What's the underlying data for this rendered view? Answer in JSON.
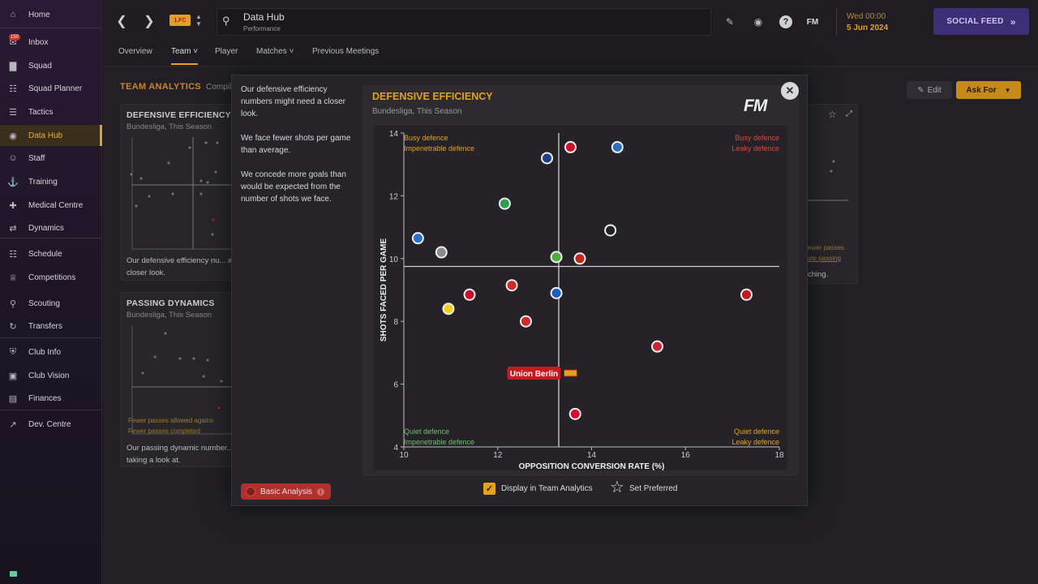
{
  "sidebar": {
    "items": [
      {
        "label": "Home",
        "icon": "home-icon"
      },
      {
        "label": "Inbox",
        "icon": "inbox-icon",
        "badge": "150"
      },
      {
        "label": "Squad",
        "icon": "shirt-icon"
      },
      {
        "label": "Squad Planner",
        "icon": "planner-icon"
      },
      {
        "label": "Tactics",
        "icon": "tactics-icon"
      },
      {
        "label": "Data Hub",
        "icon": "data-hub-icon",
        "active": true
      },
      {
        "label": "Staff",
        "icon": "staff-icon"
      },
      {
        "label": "Training",
        "icon": "training-icon"
      },
      {
        "label": "Medical Centre",
        "icon": "medical-icon"
      },
      {
        "label": "Dynamics",
        "icon": "dynamics-icon"
      },
      {
        "label": "Schedule",
        "icon": "calendar-icon"
      },
      {
        "label": "Competitions",
        "icon": "trophy-icon"
      },
      {
        "label": "Scouting",
        "icon": "scouting-icon"
      },
      {
        "label": "Transfers",
        "icon": "transfers-icon"
      },
      {
        "label": "Club Info",
        "icon": "shield-icon"
      },
      {
        "label": "Club Vision",
        "icon": "briefcase-icon"
      },
      {
        "label": "Finances",
        "icon": "finances-icon"
      },
      {
        "label": "Dev. Centre",
        "icon": "dev-centre-icon"
      }
    ]
  },
  "topbar": {
    "club_badge_text": "1.FC",
    "title": "Data Hub",
    "subtitle": "Performance",
    "brand": "FM",
    "date_line1": "Wed 00:00",
    "date_line2": "5 Jun 2024",
    "social_feed": "SOCIAL FEED"
  },
  "tabs": [
    {
      "label": "Overview"
    },
    {
      "label": "Team",
      "active": true,
      "dropdown": true
    },
    {
      "label": "Player"
    },
    {
      "label": "Matches",
      "dropdown": true
    },
    {
      "label": "Previous Meetings"
    }
  ],
  "main": {
    "section_title": "TEAM ANALYTICS",
    "section_sub": "Compil",
    "edit": "Edit",
    "ask_for": "Ask For",
    "card1": {
      "title": "DEFENSIVE EFFICIENCY",
      "sub": "Bundesliga, This Season",
      "desc": "Our defensive efficiency nu... a closer look."
    },
    "card2": {
      "title": "PASSING DYNAMICS",
      "sub": "Bundesliga, This Season",
      "desc": "Our passing dynamic number... taking a look at.",
      "l1": "Fewer passes allowed agains",
      "l2": "Fewer passes completed"
    },
    "card3": {
      "l1": "ewer passes",
      "l2": "ate passing",
      "desc": "ching."
    }
  },
  "modal": {
    "desc1": "Our defensive efficiency numbers might need a closer look.",
    "desc2": "We face fewer shots per game than average.",
    "desc3": "We concede more goals than would be expected from the number of shots we face.",
    "basic_analysis": "Basic Analysis",
    "display_label": "Display in Team Analytics",
    "preferred_label": "Set Preferred",
    "chart_title": "DEFENSIVE EFFICIENCY",
    "chart_sub": "Bundesliga, This Season",
    "fm_logo": "FM"
  },
  "chart_data": {
    "type": "scatter",
    "title": "DEFENSIVE EFFICIENCY",
    "subtitle": "Bundesliga, This Season",
    "xlabel": "OPPOSITION CONVERSION RATE (%)",
    "ylabel": "SHOTS FACED PER GAME",
    "xlim": [
      10,
      18
    ],
    "ylim": [
      4,
      14
    ],
    "xticks": [
      10,
      12,
      14,
      16,
      18
    ],
    "yticks": [
      4,
      6,
      8,
      10,
      12,
      14
    ],
    "avg_x": 13.3,
    "avg_y": 9.75,
    "quadrant_labels": {
      "top_left": [
        "Busy defence",
        "Impenetrable defence"
      ],
      "top_right": [
        "Busy defence",
        "Leaky defence"
      ],
      "bottom_left": [
        "Quiet defence",
        "Impenetrable defence"
      ],
      "bottom_right": [
        "Quiet defence",
        "Leaky defence"
      ]
    },
    "colors": {
      "label_top_left": "#e2a21f",
      "label_top_right": "#e0453a",
      "label_bottom_left": "#6cc06a",
      "label_bottom_right": "#e2a21f",
      "highlight": "#c8191f"
    },
    "highlight_label": "Union Berlin",
    "points": [
      {
        "x": 13.05,
        "y": 13.2,
        "color": "#1f3f8a"
      },
      {
        "x": 13.55,
        "y": 13.55,
        "color": "#d0102a"
      },
      {
        "x": 14.55,
        "y": 13.55,
        "color": "#2c6fc2"
      },
      {
        "x": 12.15,
        "y": 11.75,
        "color": "#2e9e4f"
      },
      {
        "x": 10.3,
        "y": 10.65,
        "color": "#2d6fc0"
      },
      {
        "x": 10.8,
        "y": 10.2,
        "color": "#8a8a8a"
      },
      {
        "x": 14.4,
        "y": 10.9,
        "color": "#222222"
      },
      {
        "x": 13.25,
        "y": 10.05,
        "color": "#4caf3a"
      },
      {
        "x": 13.75,
        "y": 10.0,
        "color": "#c1261f"
      },
      {
        "x": 11.4,
        "y": 8.85,
        "color": "#c8102e"
      },
      {
        "x": 12.3,
        "y": 9.15,
        "color": "#d22a2a"
      },
      {
        "x": 13.25,
        "y": 8.9,
        "color": "#1a5dc4"
      },
      {
        "x": 10.95,
        "y": 8.4,
        "color": "#f2d21b"
      },
      {
        "x": 12.6,
        "y": 8.0,
        "color": "#d22a2a"
      },
      {
        "x": 17.3,
        "y": 8.85,
        "color": "#c8191f"
      },
      {
        "x": 15.4,
        "y": 7.2,
        "color": "#cc2233"
      },
      {
        "x": 13.65,
        "y": 5.05,
        "color": "#d01030"
      },
      {
        "x": 13.55,
        "y": 6.35,
        "color": "#e2a21f",
        "highlight": true
      }
    ]
  }
}
